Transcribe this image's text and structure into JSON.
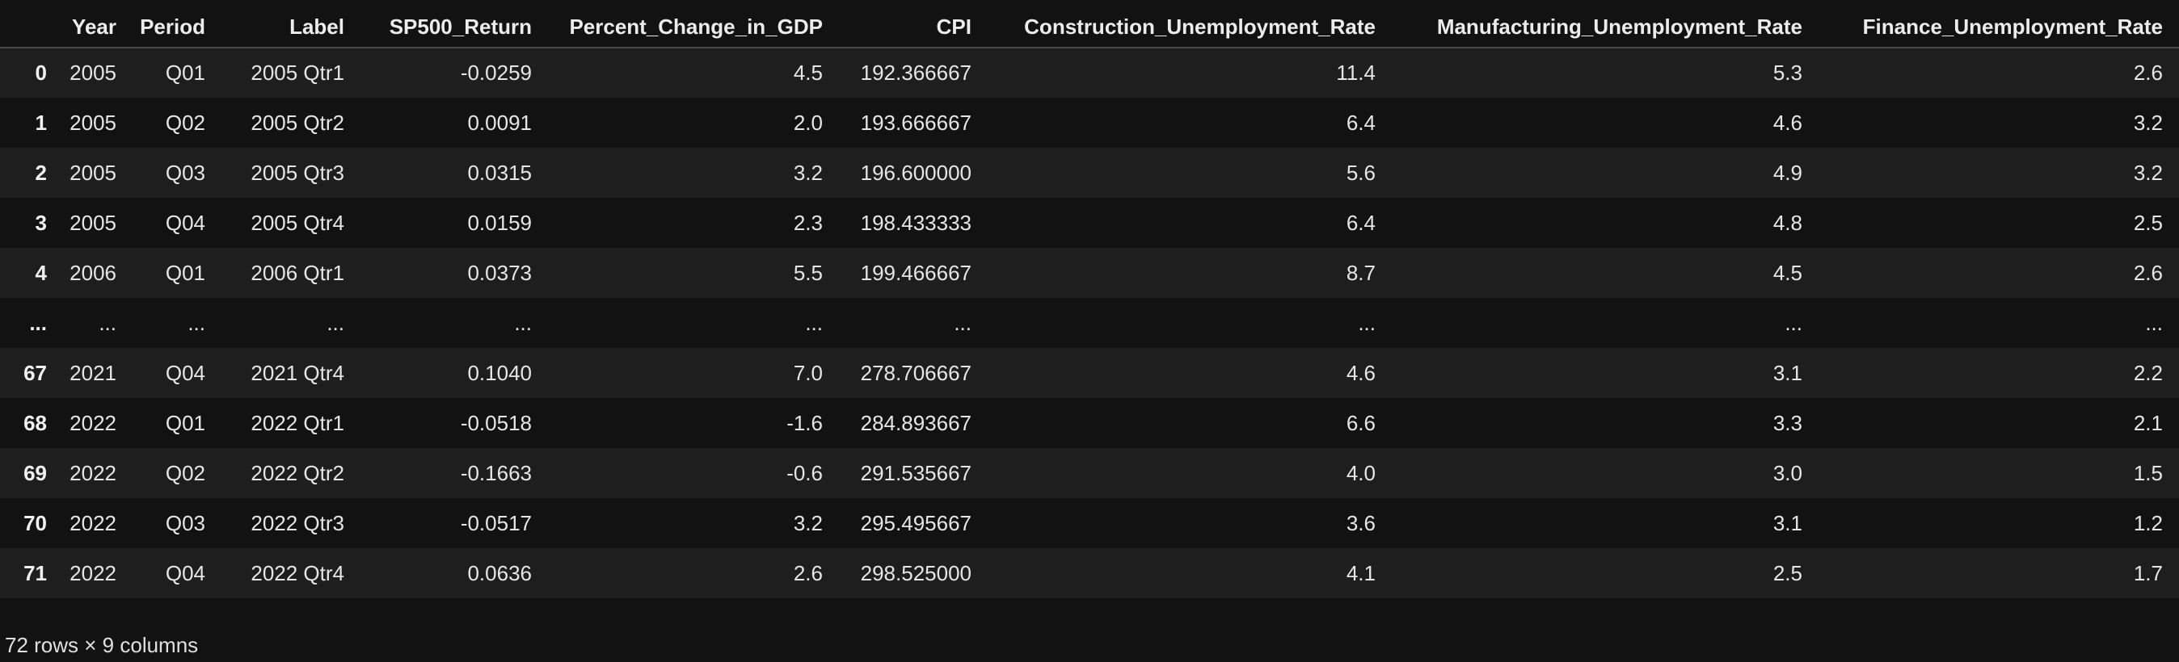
{
  "table": {
    "columns": [
      "",
      "Year",
      "Period",
      "Label",
      "SP500_Return",
      "Percent_Change_in_GDP",
      "CPI",
      "Construction_Unemployment_Rate",
      "Manufacturing_Unemployment_Rate",
      "Finance_Unemployment_Rate"
    ],
    "rows": [
      [
        "0",
        "2005",
        "Q01",
        "2005 Qtr1",
        "-0.0259",
        "4.5",
        "192.366667",
        "11.4",
        "5.3",
        "2.6"
      ],
      [
        "1",
        "2005",
        "Q02",
        "2005 Qtr2",
        "0.0091",
        "2.0",
        "193.666667",
        "6.4",
        "4.6",
        "3.2"
      ],
      [
        "2",
        "2005",
        "Q03",
        "2005 Qtr3",
        "0.0315",
        "3.2",
        "196.600000",
        "5.6",
        "4.9",
        "3.2"
      ],
      [
        "3",
        "2005",
        "Q04",
        "2005 Qtr4",
        "0.0159",
        "2.3",
        "198.433333",
        "6.4",
        "4.8",
        "2.5"
      ],
      [
        "4",
        "2006",
        "Q01",
        "2006 Qtr1",
        "0.0373",
        "5.5",
        "199.466667",
        "8.7",
        "4.5",
        "2.6"
      ],
      [
        "...",
        "...",
        "...",
        "...",
        "...",
        "...",
        "...",
        "...",
        "...",
        "..."
      ],
      [
        "67",
        "2021",
        "Q04",
        "2021 Qtr4",
        "0.1040",
        "7.0",
        "278.706667",
        "4.6",
        "3.1",
        "2.2"
      ],
      [
        "68",
        "2022",
        "Q01",
        "2022 Qtr1",
        "-0.0518",
        "-1.6",
        "284.893667",
        "6.6",
        "3.3",
        "2.1"
      ],
      [
        "69",
        "2022",
        "Q02",
        "2022 Qtr2",
        "-0.1663",
        "-0.6",
        "291.535667",
        "4.0",
        "3.0",
        "1.5"
      ],
      [
        "70",
        "2022",
        "Q03",
        "2022 Qtr3",
        "-0.0517",
        "3.2",
        "295.495667",
        "3.6",
        "3.1",
        "1.2"
      ],
      [
        "71",
        "2022",
        "Q04",
        "2022 Qtr4",
        "0.0636",
        "2.6",
        "298.525000",
        "4.1",
        "2.5",
        "1.7"
      ]
    ],
    "footer": "72 rows × 9 columns"
  }
}
